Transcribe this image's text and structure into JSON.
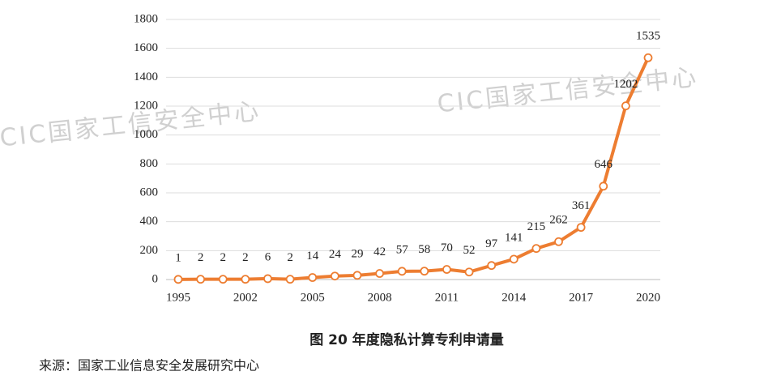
{
  "chart_data": {
    "type": "line",
    "categories": [
      "1995",
      null,
      null,
      "2002",
      null,
      null,
      "2005",
      null,
      null,
      "2008",
      null,
      null,
      "2011",
      null,
      null,
      "2014",
      null,
      null,
      "2017",
      null,
      null,
      "2020"
    ],
    "series": [
      {
        "name": "年度隐私计算专利申请量",
        "color": "#ED7D31",
        "values": [
          1,
          2,
          2,
          2,
          6,
          2,
          14,
          24,
          29,
          42,
          57,
          58,
          70,
          52,
          97,
          141,
          215,
          262,
          361,
          646,
          1202,
          1535
        ]
      }
    ],
    "ylim": [
      0,
      1800
    ],
    "yticks": [
      0,
      200,
      400,
      600,
      800,
      1000,
      1200,
      1400,
      1600,
      1800
    ],
    "grid": true,
    "caption": "图 20 年度隐私计算专利申请量",
    "source": "来源：国家工业信息安全发展研究中心",
    "watermarks": [
      "CIC国家工信安全中心",
      "CIC国家工信安全中心"
    ]
  }
}
